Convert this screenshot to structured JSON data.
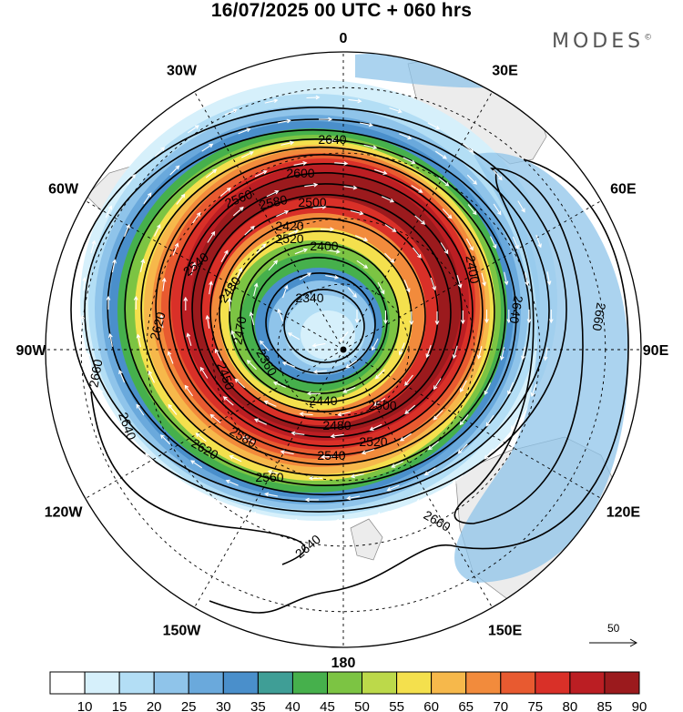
{
  "title": "16/07/2025  00 UTC  + 060 hrs",
  "brand": "MODES",
  "brand_mark": "©",
  "longitude_labels": [
    {
      "text": "0",
      "deg": 0
    },
    {
      "text": "30E",
      "deg": 30
    },
    {
      "text": "60E",
      "deg": 60
    },
    {
      "text": "90E",
      "deg": 90
    },
    {
      "text": "120E",
      "deg": 120
    },
    {
      "text": "150E",
      "deg": 150
    },
    {
      "text": "180",
      "deg": 180
    },
    {
      "text": "150W",
      "deg": 210
    },
    {
      "text": "120W",
      "deg": 240
    },
    {
      "text": "90W",
      "deg": 270
    },
    {
      "text": "60W",
      "deg": 300
    },
    {
      "text": "30W",
      "deg": 330
    }
  ],
  "contour_labels": [
    "2640",
    "2600",
    "2580",
    "2560",
    "2540",
    "2480",
    "2420",
    "2400",
    "2340",
    "2360",
    "2470",
    "2450",
    "2500",
    "2520",
    "2620",
    "2660",
    "2640",
    "2620",
    "2580",
    "2560",
    "2540",
    "2520",
    "2500",
    "2480",
    "2440",
    "2400",
    "2640",
    "2660",
    "2660",
    "2640"
  ],
  "reference_vector": {
    "label": "50"
  },
  "colorbar": {
    "ticks": [
      "10",
      "15",
      "20",
      "25",
      "30",
      "35",
      "40",
      "45",
      "50",
      "55",
      "60",
      "65",
      "70",
      "75",
      "80",
      "85",
      "90"
    ],
    "colors": [
      "#ffffff",
      "#d6f0fb",
      "#b3def5",
      "#8fc4ea",
      "#6aa9dc",
      "#4a8fcb",
      "#3f9e96",
      "#46b04c",
      "#7cc443",
      "#bcd94a",
      "#f4e04d",
      "#f6b84b",
      "#f28b3c",
      "#e85a30",
      "#d93028",
      "#bb1e23",
      "#9b1a1d"
    ]
  },
  "chart_data": {
    "type": "heatmap",
    "projection": "polar stereographic, south pole centred",
    "field": "wind speed (shaded) with geopotential height contours and wind vectors",
    "shading_levels": [
      10,
      15,
      20,
      25,
      30,
      35,
      40,
      45,
      50,
      55,
      60,
      65,
      70,
      75,
      80,
      85,
      90
    ],
    "contour_values": [
      2340,
      2360,
      2400,
      2420,
      2440,
      2450,
      2470,
      2480,
      2500,
      2520,
      2540,
      2560,
      2580,
      2600,
      2620,
      2640,
      2660
    ]
  }
}
